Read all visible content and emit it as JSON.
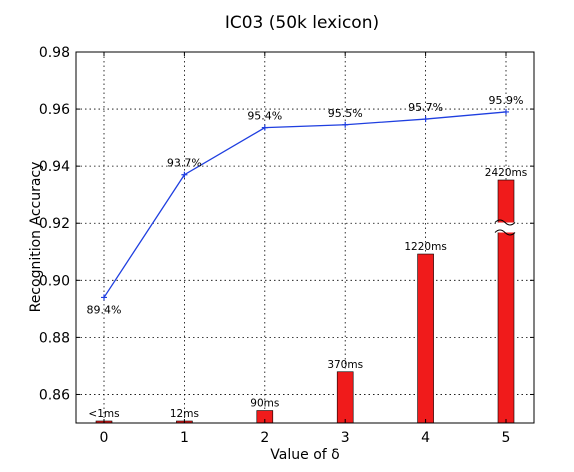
{
  "chart_data": {
    "type": "line+bar",
    "title": "IC03 (50k lexicon)",
    "xlabel": "Value of δ",
    "ylabel": "Recognition Accuracy",
    "ylim": [
      0.85,
      0.98
    ],
    "yticks": [
      "0.86",
      "0.88",
      "0.90",
      "0.92",
      "0.94",
      "0.96",
      "0.98"
    ],
    "categories": [
      "0",
      "1",
      "2",
      "3",
      "4",
      "5"
    ],
    "grid": true,
    "line_series": {
      "color": "#1f3fe0",
      "values": [
        0.894,
        0.937,
        0.9535,
        0.9545,
        0.9565,
        0.959
      ],
      "labels": [
        "89.4%",
        "93.7%",
        "95.4%",
        "95.5%",
        "95.7%",
        "95.9%"
      ]
    },
    "bar_series": {
      "color": "#f01b1b",
      "unit": "ms",
      "values": [
        1,
        12,
        90,
        370,
        1220,
        2420
      ],
      "labels": [
        "<1ms",
        "12ms",
        "90ms",
        "370ms",
        "1220ms",
        "2420ms"
      ],
      "axis_break_on_last": true
    }
  }
}
